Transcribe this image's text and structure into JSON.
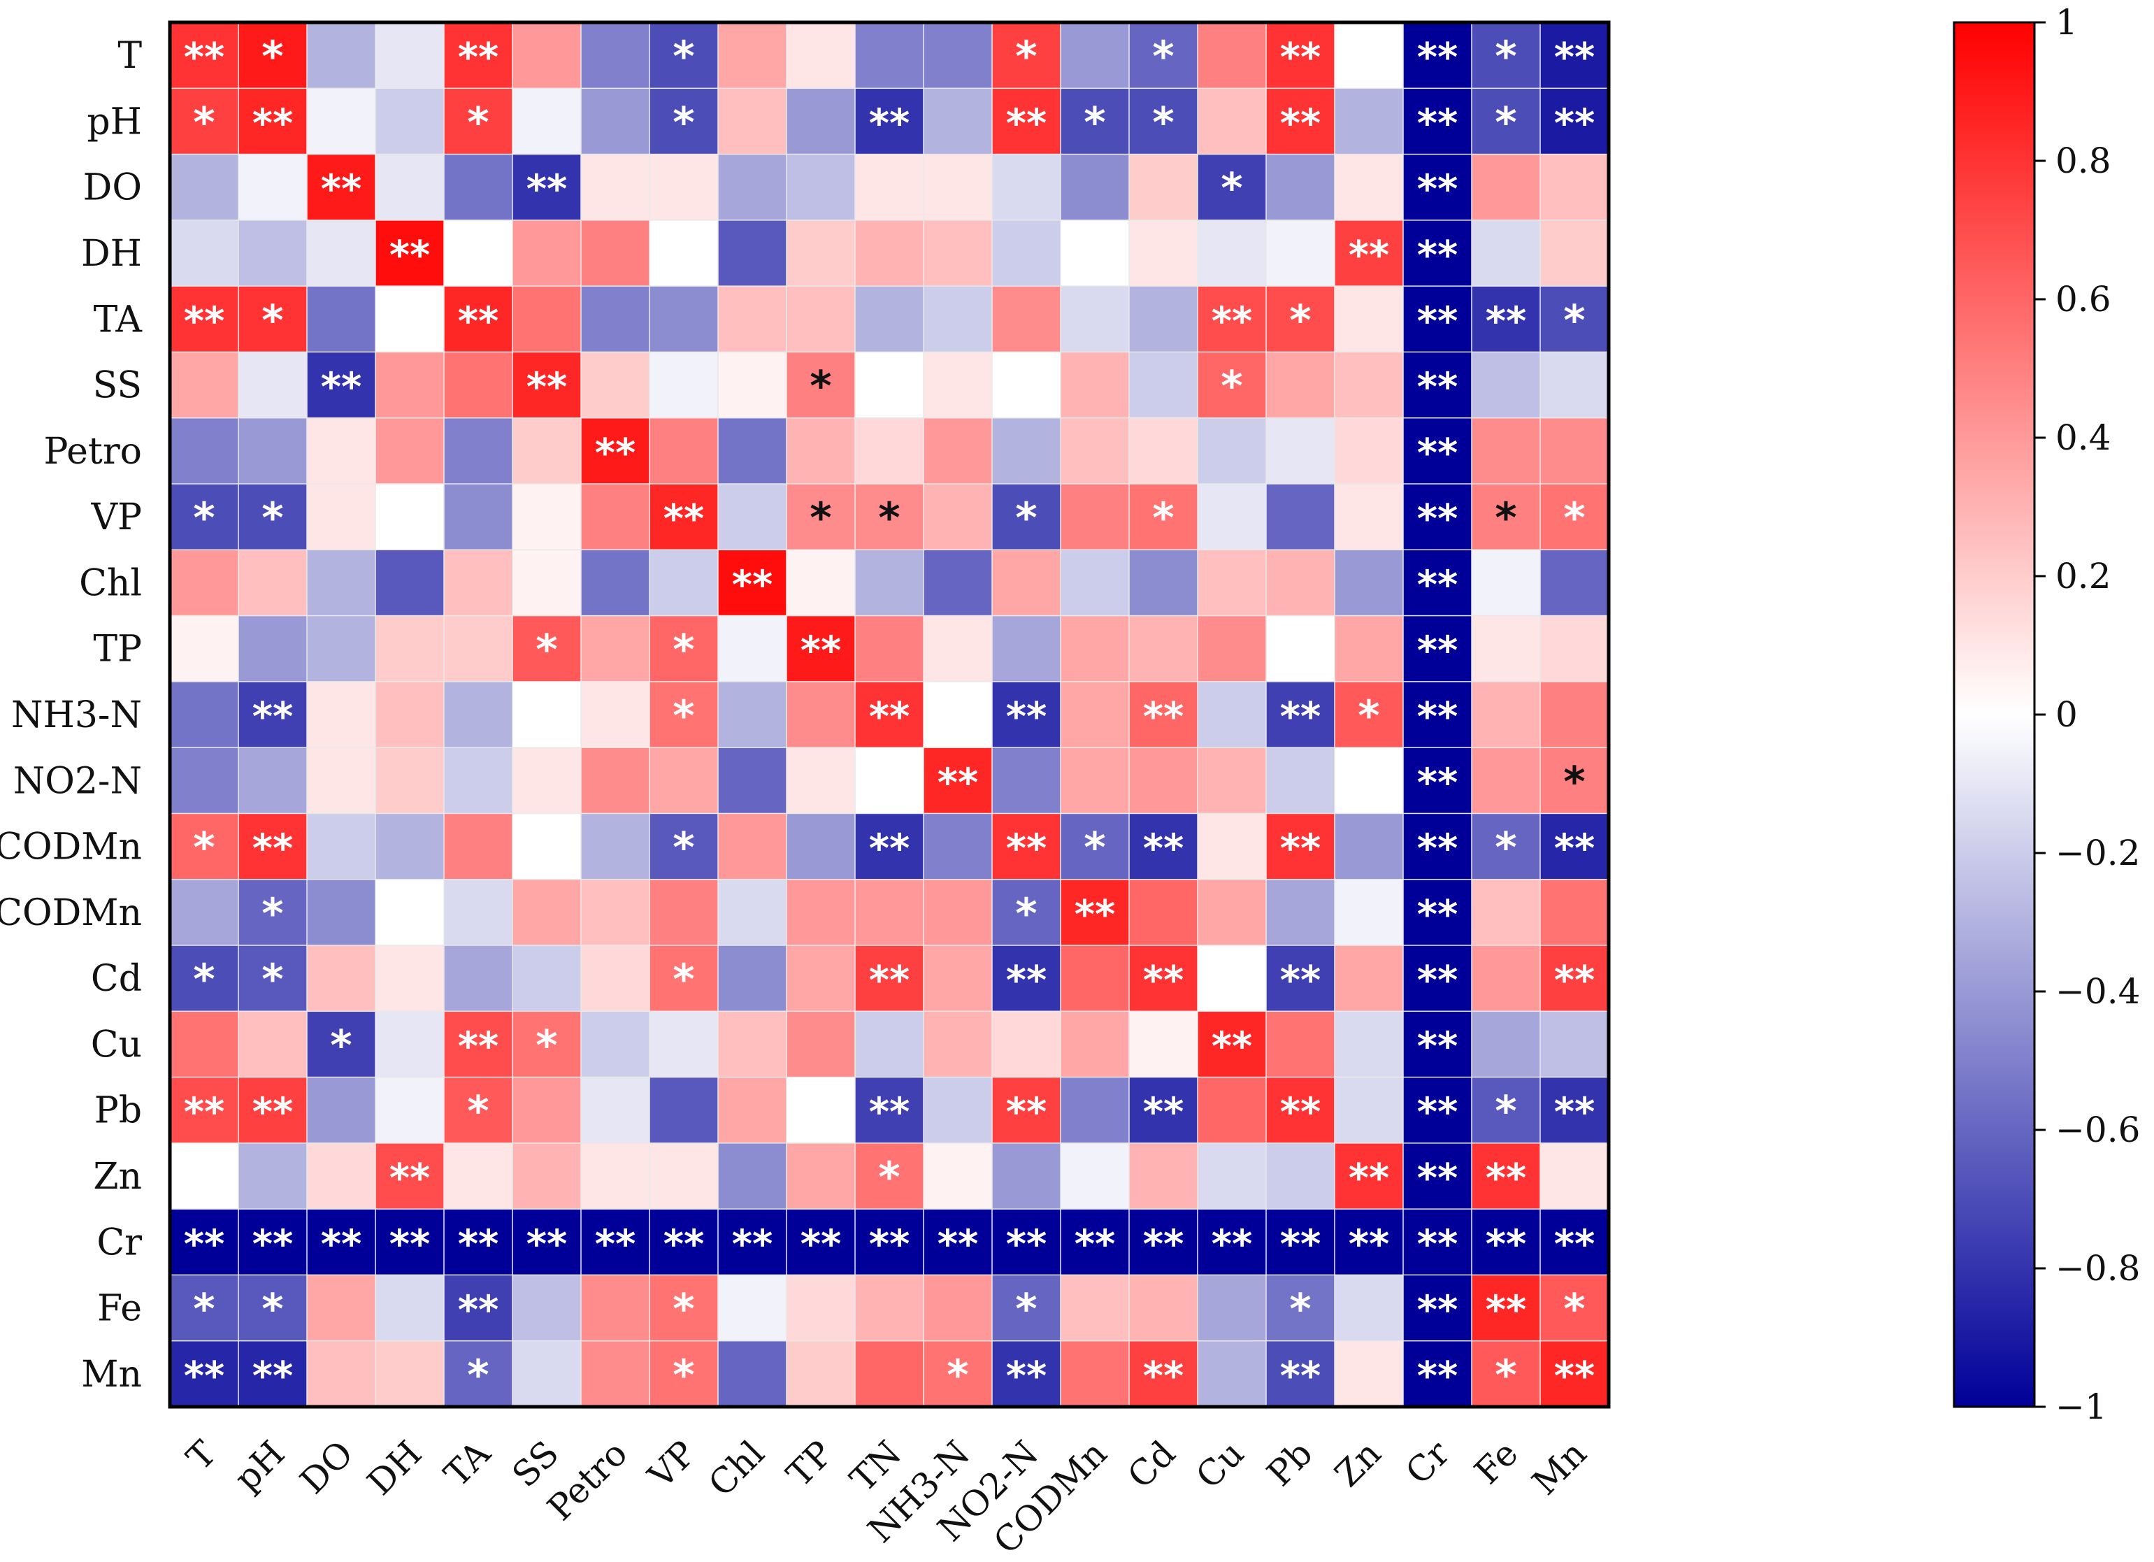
{
  "chart_data": {
    "type": "heatmap",
    "title": "",
    "xlabel": "",
    "ylabel": "",
    "row_labels": [
      "T",
      "pH",
      "DO",
      "DH",
      "TA",
      "SS",
      "Petro",
      "VP",
      "Chl",
      "TP",
      "NH3-N",
      "NO2-N",
      "CODMn",
      "CODMn",
      "Cd",
      "Cu",
      "Pb",
      "Zn",
      "Cr",
      "Fe",
      "Mn"
    ],
    "col_labels": [
      "T",
      "pH",
      "DO",
      "DH",
      "TA",
      "SS",
      "Petro",
      "VP",
      "Chl",
      "TP",
      "TN",
      "NH3-N",
      "NO2-N",
      "CODMn",
      "Cd",
      "Cu",
      "Pb",
      "Zn",
      "Cr",
      "Fe",
      "Mn"
    ],
    "values": [
      [
        0.8,
        0.9,
        -0.3,
        -0.1,
        0.8,
        0.4,
        -0.5,
        -0.7,
        0.35,
        0.1,
        -0.5,
        -0.5,
        0.75,
        -0.4,
        -0.6,
        0.5,
        0.8,
        0.0,
        -1,
        -0.7,
        -0.9
      ],
      [
        0.75,
        0.85,
        -0.05,
        -0.2,
        0.75,
        -0.05,
        -0.4,
        -0.7,
        0.25,
        -0.4,
        -0.8,
        -0.3,
        0.8,
        -0.7,
        -0.7,
        0.25,
        0.8,
        -0.3,
        -1,
        -0.7,
        -0.9
      ],
      [
        -0.3,
        -0.05,
        0.9,
        -0.1,
        -0.55,
        -0.8,
        0.1,
        0.1,
        -0.35,
        -0.25,
        0.1,
        0.1,
        -0.15,
        -0.45,
        0.2,
        -0.75,
        -0.4,
        0.1,
        -1,
        0.4,
        0.25
      ],
      [
        -0.15,
        -0.25,
        -0.1,
        0.95,
        0.0,
        0.4,
        0.5,
        0.0,
        -0.65,
        0.2,
        0.3,
        0.25,
        -0.2,
        0.0,
        0.1,
        -0.1,
        -0.05,
        0.75,
        -1,
        -0.15,
        0.2
      ],
      [
        0.8,
        0.8,
        -0.55,
        0.0,
        0.85,
        0.55,
        -0.5,
        -0.45,
        0.25,
        0.25,
        -0.3,
        -0.2,
        0.45,
        -0.15,
        -0.3,
        0.7,
        0.7,
        0.1,
        -1,
        -0.8,
        -0.7
      ],
      [
        0.35,
        -0.1,
        -0.8,
        0.4,
        0.55,
        0.85,
        0.2,
        -0.05,
        0.05,
        0.5,
        0.0,
        0.1,
        0.0,
        0.3,
        -0.2,
        0.6,
        0.35,
        0.25,
        -1,
        -0.25,
        -0.15
      ],
      [
        -0.5,
        -0.4,
        0.1,
        0.4,
        -0.5,
        0.2,
        0.9,
        0.5,
        -0.55,
        0.3,
        0.15,
        0.4,
        -0.3,
        0.25,
        0.15,
        -0.2,
        -0.1,
        0.15,
        -1,
        0.45,
        0.45
      ],
      [
        -0.7,
        -0.7,
        0.1,
        0.0,
        -0.45,
        0.05,
        0.5,
        0.85,
        -0.2,
        0.45,
        0.45,
        0.3,
        -0.7,
        0.5,
        0.55,
        -0.1,
        -0.6,
        0.1,
        -1,
        0.5,
        0.55
      ],
      [
        0.4,
        0.25,
        -0.3,
        -0.65,
        0.25,
        0.05,
        -0.55,
        -0.2,
        0.95,
        0.05,
        -0.3,
        -0.6,
        0.35,
        -0.2,
        -0.45,
        0.25,
        0.3,
        -0.4,
        -1,
        -0.05,
        -0.6
      ],
      [
        0.05,
        -0.4,
        -0.3,
        0.2,
        0.2,
        0.65,
        0.35,
        0.6,
        -0.05,
        0.9,
        0.5,
        0.1,
        -0.35,
        0.35,
        0.3,
        0.45,
        0.0,
        0.35,
        -1,
        0.1,
        0.15
      ],
      [
        -0.55,
        -0.75,
        0.1,
        0.25,
        -0.3,
        0.0,
        0.1,
        0.55,
        -0.3,
        0.45,
        0.8,
        0.0,
        -0.8,
        0.35,
        0.6,
        -0.2,
        -0.75,
        0.65,
        -1,
        0.3,
        0.5
      ],
      [
        -0.5,
        -0.35,
        0.1,
        0.2,
        -0.2,
        0.1,
        0.45,
        0.35,
        -0.6,
        0.1,
        0.0,
        0.85,
        -0.5,
        0.35,
        0.4,
        0.3,
        -0.2,
        0.0,
        -1,
        0.4,
        0.5
      ],
      [
        0.6,
        0.8,
        -0.2,
        -0.3,
        0.5,
        0.0,
        -0.3,
        -0.65,
        0.4,
        -0.4,
        -0.8,
        -0.5,
        0.8,
        -0.6,
        -0.8,
        0.1,
        0.8,
        -0.4,
        -1,
        -0.6,
        -0.85
      ],
      [
        -0.35,
        -0.6,
        -0.45,
        0.0,
        -0.15,
        0.35,
        0.25,
        0.5,
        -0.15,
        0.4,
        0.4,
        0.4,
        -0.6,
        0.85,
        0.6,
        0.35,
        -0.35,
        -0.05,
        -1,
        0.25,
        0.55
      ],
      [
        -0.7,
        -0.65,
        0.25,
        0.1,
        -0.35,
        -0.2,
        0.15,
        0.55,
        -0.45,
        0.35,
        0.75,
        0.35,
        -0.8,
        0.6,
        0.8,
        0.0,
        -0.75,
        0.35,
        -1,
        0.4,
        0.75
      ],
      [
        0.55,
        0.25,
        -0.75,
        -0.1,
        0.7,
        0.55,
        -0.2,
        -0.1,
        0.25,
        0.45,
        -0.2,
        0.3,
        0.15,
        0.35,
        0.05,
        0.85,
        0.55,
        -0.15,
        -1,
        -0.35,
        -0.25
      ],
      [
        0.7,
        0.75,
        -0.4,
        -0.05,
        0.65,
        0.4,
        -0.1,
        -0.65,
        0.35,
        0.0,
        -0.75,
        -0.2,
        0.75,
        -0.5,
        -0.8,
        0.6,
        0.8,
        -0.15,
        -1,
        -0.65,
        -0.8
      ],
      [
        0.0,
        -0.3,
        0.15,
        0.7,
        0.1,
        0.3,
        0.1,
        0.1,
        -0.45,
        0.35,
        0.55,
        0.05,
        -0.4,
        -0.05,
        0.3,
        -0.15,
        -0.2,
        0.8,
        -1,
        0.8,
        0.1
      ],
      [
        -1,
        -1,
        -1,
        -1,
        -1,
        -1,
        -1,
        -1,
        -1,
        -1,
        -1,
        -1,
        -1,
        -1,
        -1,
        -1,
        -1,
        -1,
        -1,
        -1,
        -1
      ],
      [
        -0.65,
        -0.65,
        0.35,
        -0.15,
        -0.75,
        -0.25,
        0.45,
        0.55,
        -0.05,
        0.15,
        0.3,
        0.4,
        -0.6,
        0.25,
        0.3,
        -0.35,
        -0.55,
        -0.15,
        -1,
        0.85,
        0.65
      ],
      [
        -0.85,
        -0.85,
        0.25,
        0.2,
        -0.6,
        -0.15,
        0.45,
        0.55,
        -0.6,
        0.2,
        0.6,
        0.55,
        -0.8,
        0.55,
        0.75,
        -0.3,
        -0.7,
        0.1,
        -1,
        0.65,
        0.85
      ]
    ],
    "significance": [
      [
        "**",
        "*",
        "",
        "",
        "**",
        "",
        "",
        "*",
        "",
        "",
        "",
        "",
        "*",
        "",
        "*",
        "",
        "**",
        "",
        "**",
        "*",
        "**"
      ],
      [
        "*",
        "**",
        "",
        "",
        "*",
        "",
        "",
        "*",
        "",
        "",
        "**",
        "",
        "**",
        "*",
        "*",
        "",
        "**",
        "",
        "**",
        "*",
        "**"
      ],
      [
        "",
        "",
        "**",
        "",
        "",
        "**",
        "",
        "",
        "",
        "",
        "",
        "",
        "",
        "",
        "",
        "*",
        "",
        "",
        "**",
        "",
        ""
      ],
      [
        "",
        "",
        "",
        "**",
        "",
        "",
        "",
        "",
        "",
        "",
        "",
        "",
        "",
        "",
        "",
        "",
        "",
        "**",
        "**",
        "",
        ""
      ],
      [
        "**",
        "*",
        "",
        "",
        "**",
        "",
        "",
        "",
        "",
        "",
        "",
        "",
        "",
        "",
        "",
        "**",
        "*",
        "",
        "**",
        "**",
        "*"
      ],
      [
        "",
        "",
        "**",
        "",
        "",
        "**",
        "",
        "",
        "",
        "*",
        "",
        "",
        "",
        "",
        "",
        "*",
        "",
        "",
        "**",
        "",
        ""
      ],
      [
        "",
        "",
        "",
        "",
        "",
        "",
        "**",
        "",
        "",
        "",
        "",
        "",
        "",
        "",
        "",
        "",
        "",
        "",
        "**",
        "",
        ""
      ],
      [
        "*",
        "*",
        "",
        "",
        "",
        "",
        "",
        "**",
        "",
        "*",
        "*",
        "",
        "*",
        "",
        "*",
        "",
        "",
        "",
        "**",
        "*",
        "*"
      ],
      [
        "",
        "",
        "",
        "",
        "",
        "",
        "",
        "",
        "**",
        "",
        "",
        "",
        "",
        "",
        "",
        "",
        "",
        "",
        "**",
        "",
        ""
      ],
      [
        "",
        "",
        "",
        "",
        "",
        "*",
        "",
        "*",
        "",
        "**",
        "",
        "",
        "",
        "",
        "",
        "",
        "",
        "",
        "**",
        "",
        ""
      ],
      [
        "",
        "**",
        "",
        "",
        "",
        "",
        "",
        "*",
        "",
        "",
        "**",
        "",
        "**",
        "",
        "**",
        "",
        "**",
        "*",
        "**",
        "",
        ""
      ],
      [
        "",
        "",
        "",
        "",
        "",
        "",
        "",
        "",
        "",
        "",
        "",
        "**",
        "",
        "",
        "",
        "",
        "",
        "",
        "**",
        "",
        "*"
      ],
      [
        "*",
        "**",
        "",
        "",
        "",
        "",
        "",
        "*",
        "",
        "",
        "**",
        "",
        "**",
        "*",
        "**",
        "",
        "**",
        "",
        "**",
        "*",
        "**"
      ],
      [
        "",
        "*",
        "",
        "",
        "",
        "",
        "",
        "",
        "",
        "",
        "",
        "",
        "*",
        "**",
        "",
        "",
        "",
        "",
        "**",
        "",
        ""
      ],
      [
        "*",
        "*",
        "",
        "",
        "",
        "",
        "",
        "*",
        "",
        "",
        "**",
        "",
        "**",
        "",
        "**",
        "",
        "**",
        "",
        "**",
        "",
        "**"
      ],
      [
        "",
        "",
        "*",
        "",
        "**",
        "*",
        "",
        "",
        "",
        "",
        "",
        "",
        "",
        "",
        "",
        "**",
        "",
        "",
        "**",
        "",
        ""
      ],
      [
        "**",
        "**",
        "",
        "",
        "*",
        "",
        "",
        "",
        "",
        "",
        "**",
        "",
        "**",
        "",
        "**",
        "",
        "**",
        "",
        "**",
        "*",
        "**"
      ],
      [
        "",
        "",
        "",
        "**",
        "",
        "",
        "",
        "",
        "",
        "",
        "*",
        "",
        "",
        "",
        "",
        "",
        "",
        "**",
        "**",
        "**",
        ""
      ],
      [
        "**",
        "**",
        "**",
        "**",
        "**",
        "**",
        "**",
        "**",
        "**",
        "**",
        "**",
        "**",
        "**",
        "**",
        "**",
        "**",
        "**",
        "**",
        "**",
        "**",
        "**"
      ],
      [
        "*",
        "*",
        "",
        "",
        "**",
        "",
        "",
        "*",
        "",
        "",
        "",
        "",
        "*",
        "",
        "",
        "",
        "*",
        "",
        "**",
        "**",
        "*"
      ],
      [
        "**",
        "**",
        "",
        "",
        "*",
        "",
        "",
        "*",
        "",
        "",
        "",
        "*",
        "**",
        "",
        "**",
        "",
        "**",
        "",
        "**",
        "*",
        "**"
      ]
    ],
    "colorbar": {
      "range": [
        -1,
        1
      ],
      "ticks": [
        1,
        0.8,
        0.6,
        0.4,
        0.2,
        0,
        -0.2,
        -0.4,
        -0.6,
        -0.8,
        -1
      ],
      "tick_labels": [
        "1",
        "0.8",
        "0.6",
        "0.4",
        "0.2",
        "0",
        "−0.2",
        "−0.4",
        "−0.6",
        "−0.8",
        "−1"
      ],
      "colors": {
        "negative": "#000099",
        "zero": "#ffffff",
        "positive": "#ff0000"
      }
    },
    "legend": "colorbar-right",
    "grid": true
  }
}
